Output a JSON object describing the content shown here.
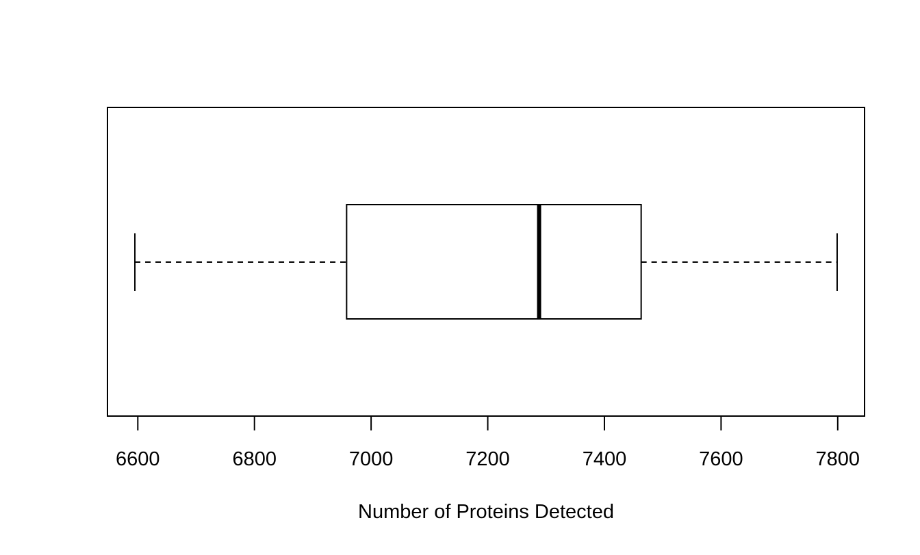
{
  "chart_data": {
    "type": "boxplot",
    "orientation": "horizontal",
    "title": "",
    "xlabel": "Number of Proteins Detected",
    "ylabel": "",
    "xlim": [
      6548,
      7846
    ],
    "x_ticks": [
      6600,
      6800,
      7000,
      7200,
      7400,
      7600,
      7800
    ],
    "x_tick_labels": [
      "6600",
      "6800",
      "7000",
      "7200",
      "7400",
      "7600",
      "7800"
    ],
    "grid": false,
    "legend": "none",
    "box": {
      "min": 6595,
      "q1": 6958,
      "median": 7288,
      "q3": 7463,
      "max": 7799
    },
    "colors": {
      "stroke": "#000000",
      "fill": "#ffffff"
    }
  }
}
